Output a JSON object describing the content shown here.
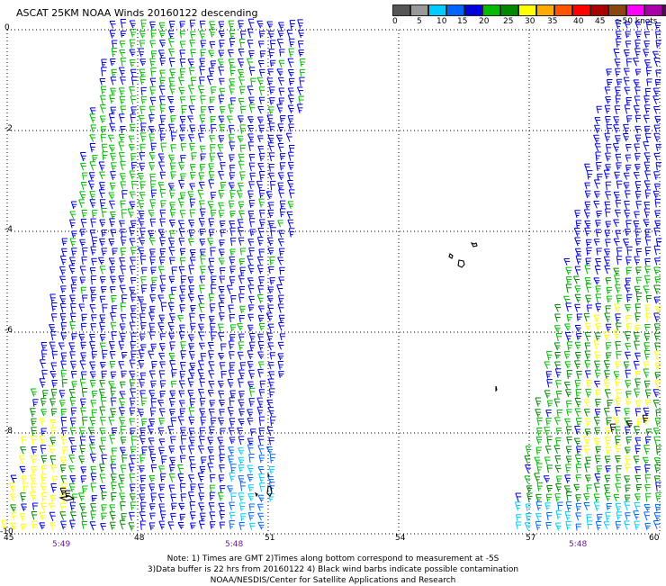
{
  "title": "ASCAT 25KM NOAA Winds 20160122 descending",
  "legend": {
    "colors": [
      "#555555",
      "#999999",
      "#00ccff",
      "#0066ff",
      "#0000dd",
      "#00bb00",
      "#008800",
      "#ffff00",
      "#ffaa00",
      "#ff5500",
      "#ff0000",
      "#aa0000",
      "#8b4513",
      "#ff00ff",
      "#aa00aa",
      "#660066"
    ],
    "ticks": [
      "0",
      "5",
      "10",
      "15",
      "20",
      "25",
      "30",
      "35",
      "40",
      "45",
      ">50 knots"
    ]
  },
  "map": {
    "lat_ticks": [
      "0",
      "-2",
      "-4",
      "-6",
      "-8",
      "-10"
    ],
    "lon_ticks": [
      "45",
      "48",
      "51",
      "54",
      "57",
      "60"
    ],
    "times": [
      "5:49",
      "5:48",
      "5:48"
    ]
  },
  "notes": [
    "Note: 1) Times are GMT 2)Times along bottom correspond to measurement at -5S",
    "3)Data buffer is 22 hrs from 20160122 4) Black wind barbs indicate possible contamination",
    "NOAA/NESDIS/Center for Satellite Applications and Research"
  ]
}
